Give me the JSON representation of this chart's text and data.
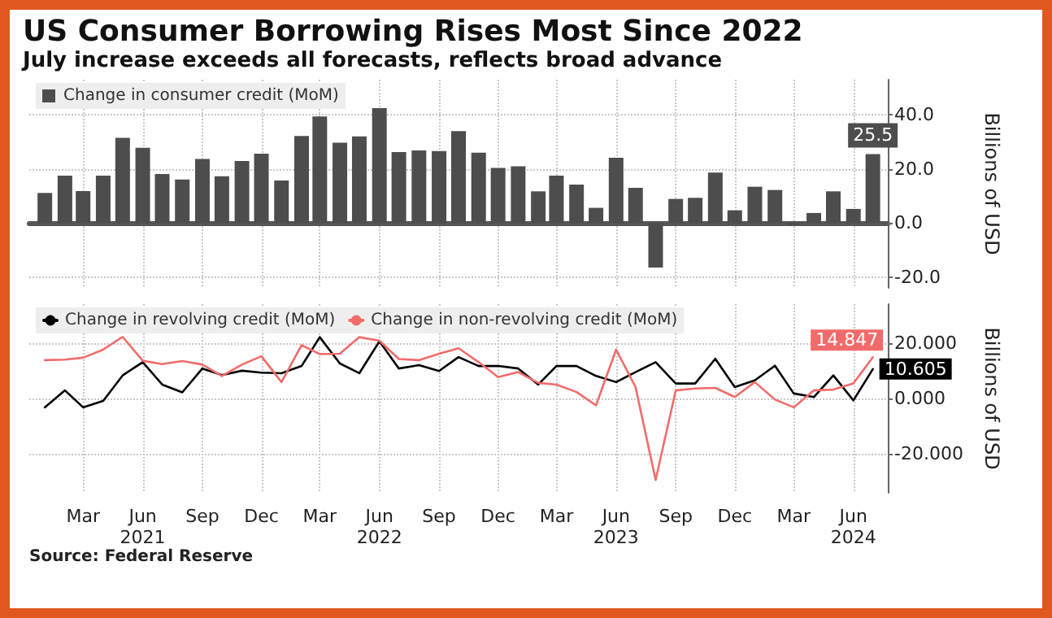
{
  "chart_data": [
    {
      "type": "bar",
      "title": "US Consumer Borrowing Rises Most Since 2022",
      "subtitle": "July increase exceeds all forecasts, reflects broad advance",
      "ylabel": "Billions of USD",
      "x": [
        "2021-01",
        "2021-02",
        "2021-03",
        "2021-04",
        "2021-05",
        "2021-06",
        "2021-07",
        "2021-08",
        "2021-09",
        "2021-10",
        "2021-11",
        "2021-12",
        "2022-01",
        "2022-02",
        "2022-03",
        "2022-04",
        "2022-05",
        "2022-06",
        "2022-07",
        "2022-08",
        "2022-09",
        "2022-10",
        "2022-11",
        "2022-12",
        "2023-01",
        "2023-02",
        "2023-03",
        "2023-04",
        "2023-05",
        "2023-06",
        "2023-07",
        "2023-08",
        "2023-09",
        "2023-10",
        "2023-11",
        "2023-12",
        "2024-01",
        "2024-02",
        "2024-03",
        "2024-04",
        "2024-05",
        "2024-06",
        "2024-07"
      ],
      "series": [
        {
          "name": "Change in consumer credit (MoM)",
          "color": "#4d4d4d",
          "values": [
            11.1,
            17.5,
            11.8,
            17.5,
            31.5,
            27.8,
            18.1,
            16.1,
            23.7,
            17.3,
            22.9,
            25.6,
            15.7,
            32.2,
            39.4,
            29.7,
            32.0,
            42.5,
            26.2,
            26.8,
            26.6,
            34.0,
            26.0,
            20.4,
            21.0,
            11.7,
            17.5,
            14.2,
            5.6,
            24.1,
            13.0,
            -16.5,
            8.9,
            9.3,
            18.6,
            4.7,
            13.4,
            12.2,
            -0.8,
            3.7,
            11.7,
            5.2,
            25.5
          ],
          "value_labels": [
            null,
            null,
            null,
            null,
            null,
            null,
            null,
            null,
            null,
            null,
            null,
            null,
            null,
            null,
            null,
            null,
            null,
            null,
            null,
            null,
            null,
            null,
            null,
            null,
            null,
            null,
            null,
            null,
            null,
            null,
            null,
            null,
            null,
            null,
            null,
            null,
            null,
            null,
            null,
            null,
            null,
            null,
            "25.5"
          ]
        }
      ],
      "xlim": [
        "2020-12-08",
        "2024-07-24"
      ],
      "xticks": [
        {
          "value": "2021-03",
          "label": null
        },
        {
          "value": "2021-06",
          "label": null
        },
        {
          "value": "2021-09",
          "label": null
        },
        {
          "value": "2021-12",
          "label": null
        },
        {
          "value": "2022-03",
          "label": null
        },
        {
          "value": "2022-06",
          "label": null
        },
        {
          "value": "2022-09",
          "label": null
        },
        {
          "value": "2022-12",
          "label": null
        },
        {
          "value": "2023-03",
          "label": null
        },
        {
          "value": "2023-06",
          "label": null
        },
        {
          "value": "2023-09",
          "label": null
        },
        {
          "value": "2023-12",
          "label": null
        },
        {
          "value": "2024-03",
          "label": null
        },
        {
          "value": "2024-06",
          "label": null
        }
      ],
      "ylim": [
        -24,
        53
      ],
      "yticks": [
        {
          "value": -20,
          "label": "-20.0"
        },
        {
          "value": 0,
          "label": "0.0"
        },
        {
          "value": 20,
          "label": "20.0"
        },
        {
          "value": 40,
          "label": "40.0"
        }
      ],
      "tick_labels": "y",
      "grid": true,
      "legend": "top left"
    },
    {
      "type": "line",
      "ylabel": "Billions of USD",
      "annotations": [
        "Source: Federal Reserve"
      ],
      "x": [
        "2021-01",
        "2021-02",
        "2021-03",
        "2021-04",
        "2021-05",
        "2021-06",
        "2021-07",
        "2021-08",
        "2021-09",
        "2021-10",
        "2021-11",
        "2021-12",
        "2022-01",
        "2022-02",
        "2022-03",
        "2022-04",
        "2022-05",
        "2022-06",
        "2022-07",
        "2022-08",
        "2022-09",
        "2022-10",
        "2022-11",
        "2022-12",
        "2023-01",
        "2023-02",
        "2023-03",
        "2023-04",
        "2023-05",
        "2023-06",
        "2023-07",
        "2023-08",
        "2023-09",
        "2023-10",
        "2023-11",
        "2023-12",
        "2024-01",
        "2024-02",
        "2024-03",
        "2024-04",
        "2024-05",
        "2024-06",
        "2024-07"
      ],
      "series": [
        {
          "name": "Change in revolving credit (MoM)",
          "color": "#000000",
          "values": [
            -3.2,
            2.9,
            -3.2,
            -0.9,
            8.3,
            13.1,
            5.0,
            2.2,
            10.8,
            8.4,
            10.0,
            9.3,
            9.1,
            11.7,
            22.1,
            12.6,
            9.1,
            20.6,
            10.8,
            12.0,
            9.9,
            14.9,
            11.7,
            11.7,
            10.8,
            5.0,
            11.7,
            11.7,
            8.1,
            5.9,
            9.5,
            13.1,
            5.4,
            5.4,
            14.3,
            4.1,
            6.5,
            11.8,
            1.8,
            0.5,
            8.3,
            -0.7,
            10.605
          ],
          "value_labels": [
            null,
            null,
            null,
            null,
            null,
            null,
            null,
            null,
            null,
            null,
            null,
            null,
            null,
            null,
            null,
            null,
            null,
            null,
            null,
            null,
            null,
            null,
            null,
            null,
            null,
            null,
            null,
            null,
            null,
            null,
            null,
            null,
            null,
            null,
            null,
            null,
            null,
            null,
            null,
            null,
            null,
            null,
            "10.605"
          ]
        },
        {
          "name": "Change in non-revolving credit (MoM)",
          "color": "#f26b6b",
          "values": [
            13.8,
            14.0,
            14.7,
            17.6,
            22.2,
            13.6,
            12.4,
            13.5,
            12.2,
            8.1,
            12.2,
            15.2,
            5.9,
            19.2,
            16.0,
            16.1,
            22.1,
            20.8,
            14.2,
            13.8,
            16.1,
            18.1,
            13.1,
            7.7,
            9.5,
            5.6,
            5.0,
            2.3,
            -2.5,
            17.6,
            4.1,
            -29.4,
            2.9,
            3.6,
            3.8,
            0.5,
            5.9,
            -0.4,
            -3.2,
            2.9,
            3.2,
            5.4,
            14.847
          ],
          "value_labels": [
            null,
            null,
            null,
            null,
            null,
            null,
            null,
            null,
            null,
            null,
            null,
            null,
            null,
            null,
            null,
            null,
            null,
            null,
            null,
            null,
            null,
            null,
            null,
            null,
            null,
            null,
            null,
            null,
            null,
            null,
            null,
            null,
            null,
            null,
            null,
            null,
            null,
            null,
            null,
            null,
            null,
            null,
            "14.847"
          ]
        }
      ],
      "xlim": [
        "2020-12-08",
        "2024-07-24"
      ],
      "xticks": [
        {
          "value": "2021-03",
          "label": "Mar"
        },
        {
          "value": "2021-06",
          "label": "Jun\n2021"
        },
        {
          "value": "2021-09",
          "label": "Sep"
        },
        {
          "value": "2021-12",
          "label": "Dec"
        },
        {
          "value": "2022-03",
          "label": "Mar"
        },
        {
          "value": "2022-06",
          "label": "Jun\n2022"
        },
        {
          "value": "2022-09",
          "label": "Sep"
        },
        {
          "value": "2022-12",
          "label": "Dec"
        },
        {
          "value": "2023-03",
          "label": "Mar"
        },
        {
          "value": "2023-06",
          "label": "Jun\n2023"
        },
        {
          "value": "2023-09",
          "label": "Sep"
        },
        {
          "value": "2023-12",
          "label": "Dec"
        },
        {
          "value": "2024-03",
          "label": "Mar"
        },
        {
          "value": "2024-06",
          "label": "Jun\n2024"
        }
      ],
      "ylim": [
        -34,
        34
      ],
      "yticks": [
        {
          "value": -20,
          "label": "-20.000"
        },
        {
          "value": 0,
          "label": "0.000"
        },
        {
          "value": 20,
          "label": "20.000"
        }
      ],
      "grid": true,
      "legend": "top left",
      "marker": "none",
      "line_style": "solid"
    }
  ]
}
